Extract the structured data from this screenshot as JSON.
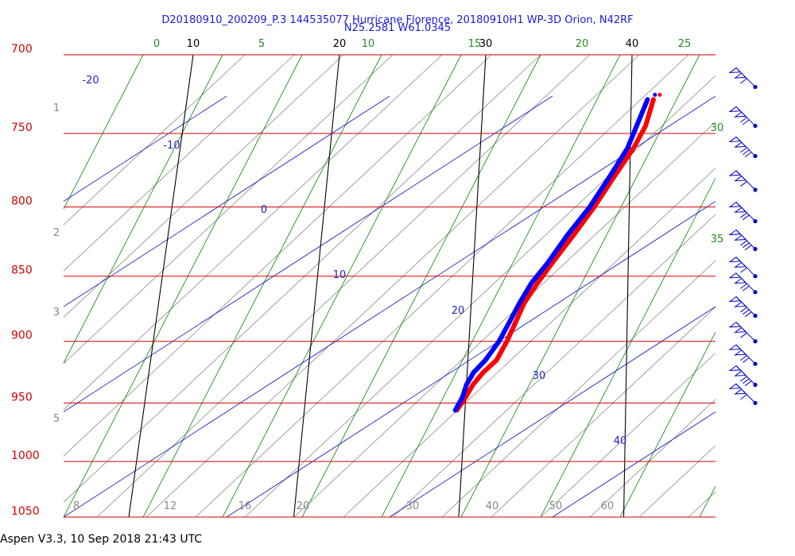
{
  "title_line1": "D20180910_200209_P.3 144535077 Hurricane Florence, 20180910H1 WP-3D Orion, N42RF",
  "title_line2": "N25.2581 W61.0345",
  "footer": "Aspen V3.3, 10 Sep 2018  21:43 UTC",
  "colors": {
    "isobar": "#d40000",
    "isotherm": "#000000",
    "mixing_ratio": "#228b22",
    "dry_adiabat": "#2020c8",
    "moist_adiabat": "#8a8a8a",
    "temperature": "#ff0000",
    "dewpoint": "#0000ff",
    "wind_barb": "#0000cc"
  },
  "chart_data": {
    "type": "line",
    "title": "D20180910_200209_P.3 144535077 Hurricane Florence, 20180910H1 WP-3D Orion, N42RF",
    "subtitle": "N25.2581 W61.0345",
    "xlabel": "",
    "ylabel": "",
    "pressure_range": [
      1050,
      700
    ],
    "pressure_labels": [
      "700",
      "750",
      "800",
      "850",
      "900",
      "950",
      "1000",
      "1050"
    ],
    "isotherm_labels": [
      "10",
      "20",
      "30",
      "40"
    ],
    "mixing_ratio_labels": [
      "0",
      "5",
      "10",
      "15",
      "20",
      "25",
      "30",
      "35"
    ],
    "dry_adiabat_labels": [
      "-20",
      "-10",
      "0",
      "10",
      "20",
      "30",
      "40"
    ],
    "bottom_labels": [
      "8",
      "12",
      "16",
      "20",
      "30",
      "40",
      "50",
      "60"
    ],
    "height_km_labels": [
      "1",
      "2",
      "3",
      "5"
    ],
    "series": [
      {
        "role": "temperature",
        "points": [
          [
            728,
            41.5
          ],
          [
            745,
            41.0
          ],
          [
            760,
            40.2
          ],
          [
            780,
            38.9
          ],
          [
            800,
            37.7
          ],
          [
            820,
            36.4
          ],
          [
            840,
            35.1
          ],
          [
            855,
            34.2
          ],
          [
            870,
            33.4
          ],
          [
            885,
            32.9
          ],
          [
            900,
            32.4
          ],
          [
            915,
            31.8
          ],
          [
            925,
            31.0
          ],
          [
            935,
            30.4
          ],
          [
            945,
            30.0
          ],
          [
            956,
            29.5
          ]
        ]
      },
      {
        "role": "dewpoint",
        "points": [
          [
            728,
            41.1
          ],
          [
            760,
            39.8
          ],
          [
            780,
            38.6
          ],
          [
            800,
            37.4
          ],
          [
            820,
            36.0
          ],
          [
            840,
            34.8
          ],
          [
            855,
            33.8
          ],
          [
            870,
            33.1
          ],
          [
            885,
            32.5
          ],
          [
            900,
            31.9
          ],
          [
            915,
            31.1
          ],
          [
            925,
            30.4
          ],
          [
            935,
            30.0
          ],
          [
            945,
            29.8
          ],
          [
            956,
            29.4
          ]
        ]
      }
    ],
    "wind_levels_hpa": [
      720,
      745,
      765,
      788,
      810,
      830,
      850,
      862,
      880,
      900,
      918,
      935,
      950
    ]
  }
}
